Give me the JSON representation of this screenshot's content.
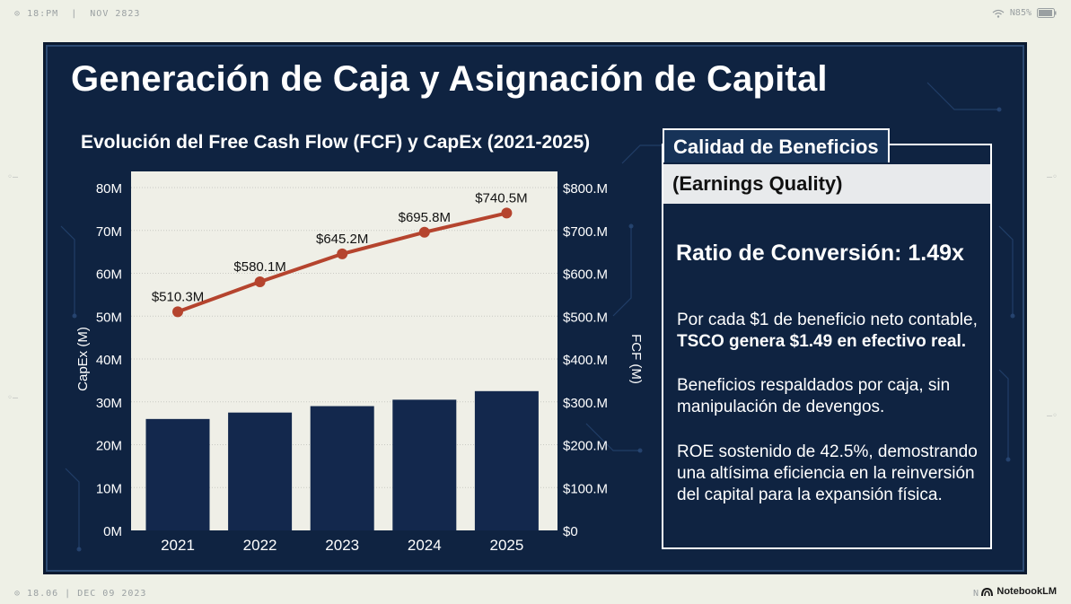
{
  "status_bar": {
    "time": "18:PM",
    "date": "NOV 2823",
    "battery": "N85%"
  },
  "footer": {
    "left": "18.06 | DEC 09 2023",
    "mid": "N",
    "brand": "NotebookLM"
  },
  "title": "Generación de Caja y Asignación de Capital",
  "chart_title": "Evolución del Free Cash Flow (FCF) y CapEx (2021-2025)",
  "chart_data": {
    "type": "bar+line",
    "categories": [
      "2021",
      "2022",
      "2023",
      "2024",
      "2025"
    ],
    "series": [
      {
        "name": "CapEx",
        "type": "bar",
        "axis": "left",
        "values": [
          26,
          27.5,
          29,
          30.5,
          32.5
        ],
        "color": "#13284d"
      },
      {
        "name": "FCF",
        "type": "line",
        "axis": "right",
        "values": [
          510.3,
          580.1,
          645.2,
          695.8,
          740.5
        ],
        "color": "#b5442e",
        "labels": [
          "$510.3M",
          "$580.1M",
          "$645.2M",
          "$695.8M",
          "$740.5M"
        ]
      }
    ],
    "ylabel_left": "CapEx (M)",
    "ylabel_right": "FCF (M)",
    "ylim_left": [
      0,
      80
    ],
    "ylim_right": [
      0,
      800
    ],
    "yticks_left": [
      "0M",
      "10M",
      "20M",
      "30M",
      "40M",
      "50M",
      "60M",
      "70M",
      "80M"
    ],
    "yticks_right": [
      "$0",
      "$100.M",
      "$200.M",
      "$300.M",
      "$400.M",
      "$500.M",
      "$600.M",
      "$700.M",
      "$800.M"
    ],
    "grid": true,
    "background": "#efefe7"
  },
  "card": {
    "tab": "Calidad de Beneficios",
    "subtitle": "(Earnings Quality)",
    "ratio": "Ratio de Conversión: 1.49x",
    "p1_line1": "Por cada $1 de beneficio neto contable,",
    "p1_line2": "TSCO genera $1.49 en efectivo real.",
    "p2": "Beneficios respaldados por caja, sin manipulación de devengos.",
    "p3": "ROE sostenido de 42.5%, demostrando una altísima eficiencia en la reinversión del capital para la expansión física."
  }
}
